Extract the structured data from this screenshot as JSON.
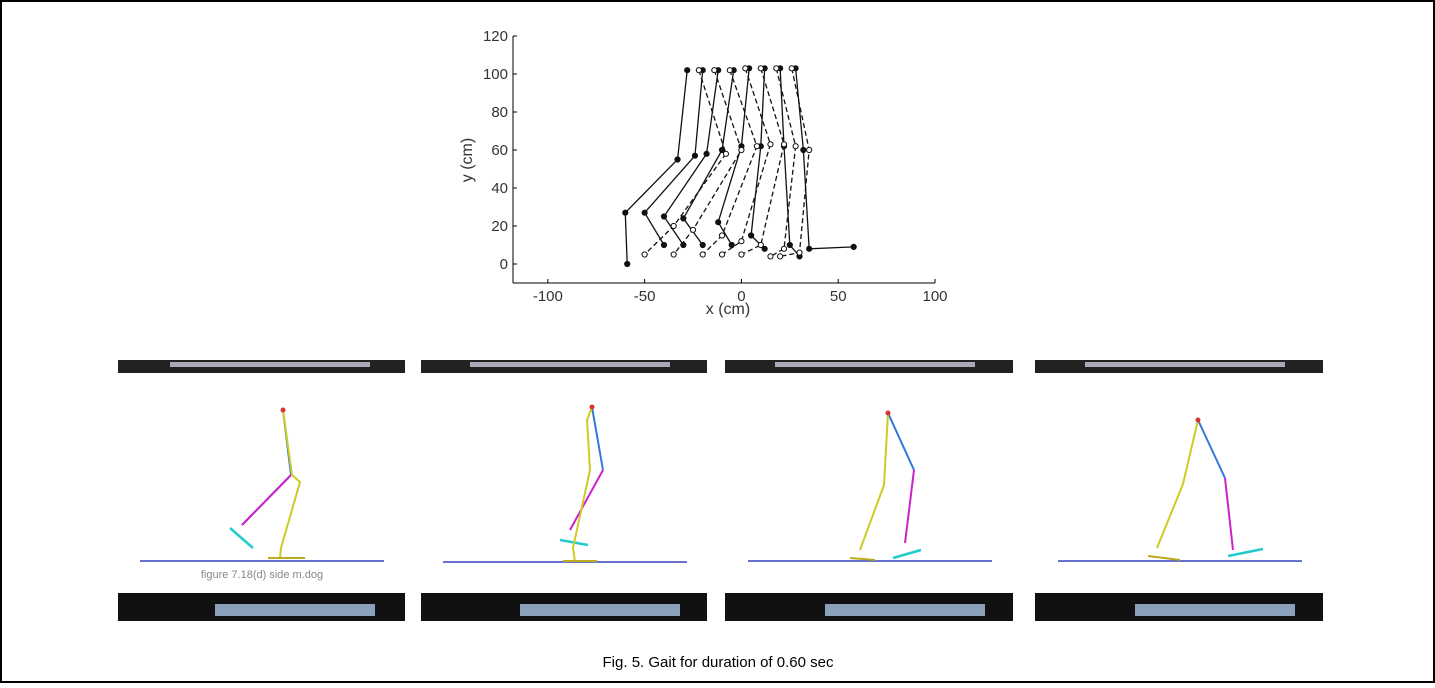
{
  "chart_data": {
    "type": "line",
    "xlabel": "x (cm)",
    "ylabel": "y (cm)",
    "xlim": [
      -118,
      100
    ],
    "ylim": [
      -10,
      120
    ],
    "xticks": [
      -100,
      -50,
      0,
      50,
      100
    ],
    "yticks": [
      0,
      20,
      40,
      60,
      80,
      100,
      120
    ],
    "color": "#111111",
    "series": [
      {
        "style": "solid",
        "x": [
          -28,
          -33,
          -60,
          -59
        ],
        "values": [
          102,
          55,
          27,
          0
        ]
      },
      {
        "style": "solid",
        "x": [
          -20,
          -24,
          -50,
          -40
        ],
        "values": [
          102,
          57,
          27,
          10
        ]
      },
      {
        "style": "solid",
        "x": [
          -12,
          -18,
          -40,
          -30
        ],
        "values": [
          102,
          58,
          25,
          10
        ]
      },
      {
        "style": "solid",
        "x": [
          -4,
          -10,
          -30,
          -20
        ],
        "values": [
          102,
          60,
          24,
          10
        ]
      },
      {
        "style": "solid",
        "x": [
          4,
          0,
          -12,
          -5
        ],
        "values": [
          103,
          62,
          22,
          10
        ]
      },
      {
        "style": "solid",
        "x": [
          12,
          10,
          5,
          12
        ],
        "values": [
          103,
          62,
          15,
          8
        ]
      },
      {
        "style": "solid",
        "x": [
          20,
          22,
          25,
          30
        ],
        "values": [
          103,
          62,
          10,
          4
        ]
      },
      {
        "style": "solid",
        "x": [
          28,
          32,
          35,
          58
        ],
        "values": [
          103,
          60,
          8,
          9
        ]
      },
      {
        "style": "dashed",
        "x": [
          -22,
          -8,
          -35,
          -50
        ],
        "values": [
          102,
          58,
          20,
          5
        ]
      },
      {
        "style": "dashed",
        "x": [
          -14,
          0,
          -25,
          -35
        ],
        "values": [
          102,
          60,
          18,
          5
        ]
      },
      {
        "style": "dashed",
        "x": [
          -6,
          8,
          -10,
          -20
        ],
        "values": [
          102,
          62,
          15,
          5
        ]
      },
      {
        "style": "dashed",
        "x": [
          2,
          15,
          0,
          -10
        ],
        "values": [
          103,
          63,
          12,
          5
        ]
      },
      {
        "style": "dashed",
        "x": [
          10,
          22,
          10,
          0
        ],
        "values": [
          103,
          63,
          10,
          5
        ]
      },
      {
        "style": "dashed",
        "x": [
          18,
          28,
          22,
          15
        ],
        "values": [
          103,
          62,
          8,
          4
        ]
      },
      {
        "style": "dashed",
        "x": [
          26,
          35,
          30,
          20
        ],
        "values": [
          103,
          60,
          6,
          4
        ]
      }
    ]
  },
  "panel_caption": "figure 7.18(d) side m.dog",
  "caption": "Fig. 5. Gait for duration of 0.60 sec"
}
